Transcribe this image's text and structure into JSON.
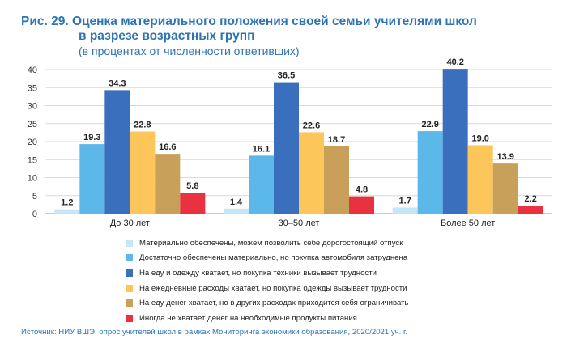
{
  "title": {
    "line1": "Рис. 29. Оценка материального положения своей семьи учителями школ",
    "line2": "в разрезе возрастных групп",
    "subtitle": "(в процентах от численности ответивших)"
  },
  "source": "Источник: НИУ ВШЭ, опрос учителей школ в рамках Мониторинга экономики образования, 2020/2021 уч. г.",
  "chart_data": {
    "type": "bar",
    "categories": [
      "До 30 лет",
      "30–50 лет",
      "Более 50 лет"
    ],
    "ylim": [
      0,
      40
    ],
    "yticks": [
      0,
      5,
      10,
      15,
      20,
      25,
      30,
      35,
      40
    ],
    "grid": true,
    "legend_position": "bottom",
    "series": [
      {
        "name": "Материально обеспечены, можем позволить себе дорогостоящий отпуск",
        "color": "#c5e6f7",
        "values": [
          1.2,
          1.4,
          1.7
        ],
        "labels": [
          "1.2",
          "1.4",
          "1.7"
        ]
      },
      {
        "name": "Достаточно обеспечены материально, но покупка автомобиля затруднена",
        "color": "#5bb8e8",
        "values": [
          19.3,
          16.1,
          22.9
        ],
        "labels": [
          "19.3",
          "16.1",
          "22.9"
        ]
      },
      {
        "name": "На еду и одежду хватает, но покупка техники вызывает трудности",
        "color": "#3a6fbd",
        "values": [
          34.3,
          36.5,
          40.2
        ],
        "labels": [
          "34.3",
          "36.5",
          "40.2"
        ]
      },
      {
        "name": "На ежедневные расходы хватает, но покупка одежды вызывает трудности",
        "color": "#fcc65a",
        "values": [
          22.8,
          22.6,
          19.0
        ],
        "labels": [
          "22.8",
          "22.6",
          "19.0"
        ]
      },
      {
        "name": "На еду денег хватает, но в других расходах приходится себя ограничивать",
        "color": "#c9a05a",
        "values": [
          16.6,
          18.7,
          13.9
        ],
        "labels": [
          "16.6",
          "18.7",
          "13.9"
        ]
      },
      {
        "name": "Иногда не хватает денег на необходимые продукты питания",
        "color": "#e8323f",
        "values": [
          5.8,
          4.8,
          2.2
        ],
        "labels": [
          "5.8",
          "4.8",
          "2.2"
        ]
      }
    ]
  }
}
